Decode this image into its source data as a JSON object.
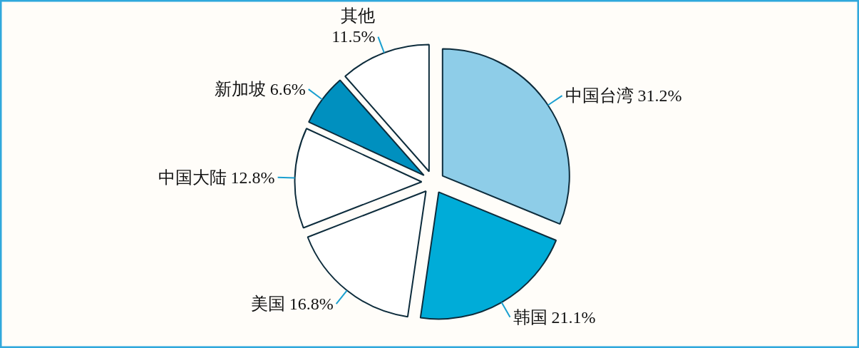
{
  "chart_data": {
    "type": "pie",
    "categories": [
      "中国台湾",
      "韩国",
      "美国",
      "中国大陆",
      "新加坡",
      "其他"
    ],
    "values": [
      31.2,
      21.1,
      16.8,
      12.8,
      6.6,
      11.5
    ],
    "value_labels": [
      "31.2%",
      "21.1%",
      "16.8%",
      "12.8%",
      "6.6%",
      "11.5%"
    ],
    "colors": [
      "#8ecde8",
      "#00acd8",
      "#ffffff",
      "#ffffff",
      "#0090bf",
      "#ffffff"
    ],
    "legend": false
  }
}
